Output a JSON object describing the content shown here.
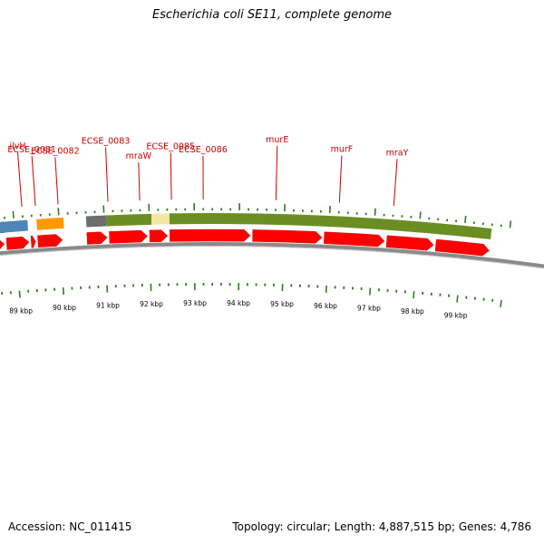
{
  "title": "Escherichia coli SE11, complete genome",
  "footer": {
    "accession": "Accession: NC_011415",
    "topology": "Topology: circular; Length: 4,887,515 bp; Genes: 4,786"
  },
  "colors": {
    "gene_label": "#cc0000",
    "cds_arrow": "#ff0000",
    "tick": "#2e7d1f",
    "backbone": "#888888",
    "olive": "#6b8e23",
    "orange": "#ff9900",
    "blue": "#0000ee",
    "steel": "#4f86b8"
  },
  "gene_labels": [
    {
      "name": "ilvH",
      "kbp": 89.2
    },
    {
      "name": "ECSE_0081",
      "kbp": 89.5
    },
    {
      "name": "ECSE_0082",
      "kbp": 90.0
    },
    {
      "name": "ECSE_0083",
      "kbp": 91.1
    },
    {
      "name": "mraW",
      "kbp": 91.8
    },
    {
      "name": "ECSE_0085",
      "kbp": 92.5
    },
    {
      "name": "ECSE_0086",
      "kbp": 93.2
    },
    {
      "name": "murE",
      "kbp": 94.8
    },
    {
      "name": "murF",
      "kbp": 96.2
    },
    {
      "name": "mraY",
      "kbp": 97.4
    }
  ],
  "kbp_labels": [
    {
      "label": "89 kbp",
      "kbp": 89
    },
    {
      "label": "90 kbp",
      "kbp": 90
    },
    {
      "label": "91 kbp",
      "kbp": 91
    },
    {
      "label": "92 kbp",
      "kbp": 92
    },
    {
      "label": "93 kbp",
      "kbp": 93
    },
    {
      "label": "94 kbp",
      "kbp": 94
    },
    {
      "label": "95 kbp",
      "kbp": 95
    },
    {
      "label": "96 kbp",
      "kbp": 96
    },
    {
      "label": "97 kbp",
      "kbp": 97
    },
    {
      "label": "98 kbp",
      "kbp": 98
    },
    {
      "label": "99 kbp",
      "kbp": 99
    }
  ],
  "cds_arrows": [
    {
      "start": 88.3,
      "end": 88.75
    },
    {
      "start": 88.8,
      "end": 89.3
    },
    {
      "start": 89.35,
      "end": 89.45
    },
    {
      "start": 89.5,
      "end": 90.05
    },
    {
      "start": 90.6,
      "end": 91.05
    },
    {
      "start": 91.1,
      "end": 91.95
    },
    {
      "start": 92.0,
      "end": 92.4
    },
    {
      "start": 92.45,
      "end": 94.25
    },
    {
      "start": 94.3,
      "end": 95.85
    },
    {
      "start": 95.9,
      "end": 97.25
    },
    {
      "start": 97.3,
      "end": 98.35
    },
    {
      "start": 98.4,
      "end": 99.6
    }
  ],
  "features": [
    {
      "start": 88.3,
      "end": 88.78,
      "color": "#0000ee"
    },
    {
      "start": 88.3,
      "end": 89.3,
      "color": "#4f86b8"
    },
    {
      "start": 89.5,
      "end": 90.1,
      "color": "#ff9900"
    },
    {
      "start": 90.6,
      "end": 91.05,
      "color": "#6e6e6e"
    },
    {
      "start": 91.05,
      "end": 92.05,
      "color": "#6b8e23"
    },
    {
      "start": 92.05,
      "end": 92.45,
      "color": "#f2e6a0"
    },
    {
      "start": 92.45,
      "end": 99.6,
      "color": "#6b8e23"
    }
  ]
}
